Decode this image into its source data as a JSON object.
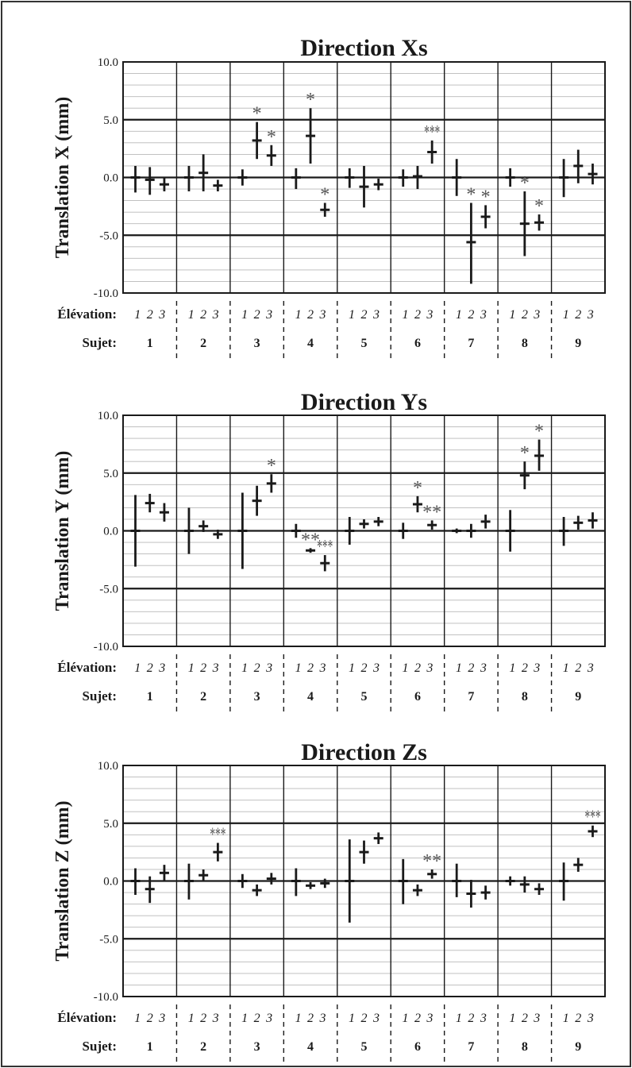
{
  "chart_data": [
    {
      "type": "errorbar",
      "title": "Direction Xs",
      "ylabel": "Translation X (mm)",
      "ylim": [
        -10,
        10
      ],
      "yticks": [
        "10.0",
        "5.0",
        "0.0",
        "-5.0",
        "-10.0"
      ],
      "row_labels": {
        "elevation": "Élévation:",
        "subject": "Sujet:"
      },
      "groups": [
        "1",
        "2",
        "3",
        "4",
        "5",
        "6",
        "7",
        "8",
        "9"
      ],
      "elevation_labels": [
        "1",
        "2",
        "3"
      ],
      "points": [
        {
          "s": 1,
          "e": 1,
          "y": 0.0,
          "lo": -1.3,
          "hi": 1.0,
          "stars": ""
        },
        {
          "s": 1,
          "e": 2,
          "y": -0.2,
          "lo": -1.5,
          "hi": 0.9,
          "stars": ""
        },
        {
          "s": 1,
          "e": 3,
          "y": -0.6,
          "lo": -1.2,
          "hi": 0.0,
          "stars": ""
        },
        {
          "s": 2,
          "e": 1,
          "y": 0.0,
          "lo": -1.2,
          "hi": 1.0,
          "stars": ""
        },
        {
          "s": 2,
          "e": 2,
          "y": 0.4,
          "lo": -1.2,
          "hi": 2.0,
          "stars": ""
        },
        {
          "s": 2,
          "e": 3,
          "y": -0.7,
          "lo": -1.2,
          "hi": -0.2,
          "stars": ""
        },
        {
          "s": 3,
          "e": 1,
          "y": 0.0,
          "lo": -0.7,
          "hi": 0.7,
          "stars": ""
        },
        {
          "s": 3,
          "e": 2,
          "y": 3.2,
          "lo": 1.6,
          "hi": 4.8,
          "stars": "*"
        },
        {
          "s": 3,
          "e": 3,
          "y": 1.9,
          "lo": 1.0,
          "hi": 2.8,
          "stars": "*"
        },
        {
          "s": 4,
          "e": 1,
          "y": 0.0,
          "lo": -1.0,
          "hi": 0.8,
          "stars": ""
        },
        {
          "s": 4,
          "e": 2,
          "y": 3.6,
          "lo": 1.2,
          "hi": 6.0,
          "stars": "*"
        },
        {
          "s": 4,
          "e": 3,
          "y": -2.8,
          "lo": -3.4,
          "hi": -2.2,
          "stars": "*"
        },
        {
          "s": 5,
          "e": 1,
          "y": 0.0,
          "lo": -0.9,
          "hi": 0.8,
          "stars": ""
        },
        {
          "s": 5,
          "e": 2,
          "y": -0.8,
          "lo": -2.6,
          "hi": 1.0,
          "stars": ""
        },
        {
          "s": 5,
          "e": 3,
          "y": -0.6,
          "lo": -1.1,
          "hi": -0.1,
          "stars": ""
        },
        {
          "s": 6,
          "e": 1,
          "y": 0.0,
          "lo": -0.8,
          "hi": 0.7,
          "stars": ""
        },
        {
          "s": 6,
          "e": 2,
          "y": 0.1,
          "lo": -1.0,
          "hi": 1.0,
          "stars": ""
        },
        {
          "s": 6,
          "e": 3,
          "y": 2.2,
          "lo": 1.2,
          "hi": 3.2,
          "stars": "***"
        },
        {
          "s": 7,
          "e": 1,
          "y": 0.0,
          "lo": -1.6,
          "hi": 1.6,
          "stars": ""
        },
        {
          "s": 7,
          "e": 2,
          "y": -5.6,
          "lo": -9.2,
          "hi": -2.2,
          "stars": "*"
        },
        {
          "s": 7,
          "e": 3,
          "y": -3.4,
          "lo": -4.4,
          "hi": -2.4,
          "stars": "*"
        },
        {
          "s": 8,
          "e": 1,
          "y": 0.0,
          "lo": -0.8,
          "hi": 0.8,
          "stars": ""
        },
        {
          "s": 8,
          "e": 2,
          "y": -4.0,
          "lo": -6.8,
          "hi": -1.2,
          "stars": "*"
        },
        {
          "s": 8,
          "e": 3,
          "y": -3.9,
          "lo": -4.6,
          "hi": -3.2,
          "stars": "*"
        },
        {
          "s": 9,
          "e": 1,
          "y": 0.0,
          "lo": -1.7,
          "hi": 1.6,
          "stars": ""
        },
        {
          "s": 9,
          "e": 2,
          "y": 1.0,
          "lo": -0.5,
          "hi": 2.4,
          "stars": ""
        },
        {
          "s": 9,
          "e": 3,
          "y": 0.3,
          "lo": -0.6,
          "hi": 1.2,
          "stars": ""
        }
      ]
    },
    {
      "type": "errorbar",
      "title": "Direction Ys",
      "ylabel": "Translation Y (mm)",
      "ylim": [
        -10,
        10
      ],
      "yticks": [
        "10.0",
        "5.0",
        "0.0",
        "-5.0",
        "-10.0"
      ],
      "row_labels": {
        "elevation": "Élévation:",
        "subject": "Sujet:"
      },
      "groups": [
        "1",
        "2",
        "3",
        "4",
        "5",
        "6",
        "7",
        "8",
        "9"
      ],
      "elevation_labels": [
        "1",
        "2",
        "3"
      ],
      "points": [
        {
          "s": 1,
          "e": 1,
          "y": 0.0,
          "lo": -3.1,
          "hi": 3.1,
          "stars": ""
        },
        {
          "s": 1,
          "e": 2,
          "y": 2.4,
          "lo": 1.6,
          "hi": 3.2,
          "stars": ""
        },
        {
          "s": 1,
          "e": 3,
          "y": 1.6,
          "lo": 0.8,
          "hi": 2.4,
          "stars": ""
        },
        {
          "s": 2,
          "e": 1,
          "y": 0.0,
          "lo": -2.0,
          "hi": 2.0,
          "stars": ""
        },
        {
          "s": 2,
          "e": 2,
          "y": 0.4,
          "lo": -0.1,
          "hi": 0.9,
          "stars": ""
        },
        {
          "s": 2,
          "e": 3,
          "y": -0.3,
          "lo": -0.7,
          "hi": 0.1,
          "stars": ""
        },
        {
          "s": 3,
          "e": 1,
          "y": 0.0,
          "lo": -3.3,
          "hi": 3.3,
          "stars": ""
        },
        {
          "s": 3,
          "e": 2,
          "y": 2.6,
          "lo": 1.3,
          "hi": 3.9,
          "stars": ""
        },
        {
          "s": 3,
          "e": 3,
          "y": 4.1,
          "lo": 3.3,
          "hi": 4.9,
          "stars": "*"
        },
        {
          "s": 4,
          "e": 1,
          "y": 0.0,
          "lo": -0.6,
          "hi": 0.6,
          "stars": ""
        },
        {
          "s": 4,
          "e": 2,
          "y": -1.7,
          "lo": -1.9,
          "hi": -1.5,
          "stars": "**"
        },
        {
          "s": 4,
          "e": 3,
          "y": -2.8,
          "lo": -3.5,
          "hi": -2.1,
          "stars": "***"
        },
        {
          "s": 5,
          "e": 1,
          "y": 0.0,
          "lo": -1.2,
          "hi": 1.2,
          "stars": ""
        },
        {
          "s": 5,
          "e": 2,
          "y": 0.6,
          "lo": 0.2,
          "hi": 1.0,
          "stars": ""
        },
        {
          "s": 5,
          "e": 3,
          "y": 0.8,
          "lo": 0.4,
          "hi": 1.2,
          "stars": ""
        },
        {
          "s": 6,
          "e": 1,
          "y": 0.0,
          "lo": -0.7,
          "hi": 0.7,
          "stars": ""
        },
        {
          "s": 6,
          "e": 2,
          "y": 2.3,
          "lo": 1.6,
          "hi": 3.0,
          "stars": "*"
        },
        {
          "s": 6,
          "e": 3,
          "y": 0.5,
          "lo": 0.1,
          "hi": 0.9,
          "stars": "**"
        },
        {
          "s": 7,
          "e": 1,
          "y": 0.0,
          "lo": -0.2,
          "hi": 0.2,
          "stars": ""
        },
        {
          "s": 7,
          "e": 2,
          "y": 0.0,
          "lo": -0.6,
          "hi": 0.6,
          "stars": ""
        },
        {
          "s": 7,
          "e": 3,
          "y": 0.8,
          "lo": 0.2,
          "hi": 1.4,
          "stars": ""
        },
        {
          "s": 8,
          "e": 1,
          "y": 0.0,
          "lo": -1.8,
          "hi": 1.8,
          "stars": ""
        },
        {
          "s": 8,
          "e": 2,
          "y": 4.8,
          "lo": 3.6,
          "hi": 6.0,
          "stars": "*"
        },
        {
          "s": 8,
          "e": 3,
          "y": 6.5,
          "lo": 5.2,
          "hi": 7.9,
          "stars": "*"
        },
        {
          "s": 9,
          "e": 1,
          "y": 0.0,
          "lo": -1.3,
          "hi": 1.2,
          "stars": ""
        },
        {
          "s": 9,
          "e": 2,
          "y": 0.7,
          "lo": 0.1,
          "hi": 1.3,
          "stars": ""
        },
        {
          "s": 9,
          "e": 3,
          "y": 0.9,
          "lo": 0.2,
          "hi": 1.6,
          "stars": ""
        }
      ]
    },
    {
      "type": "errorbar",
      "title": "Direction Zs",
      "ylabel": "Translation Z (mm)",
      "ylim": [
        -10,
        10
      ],
      "yticks": [
        "10.0",
        "5.0",
        "0.0",
        "-5.0",
        "-10.0"
      ],
      "row_labels": {
        "elevation": "Élévation:",
        "subject": "Sujet:"
      },
      "groups": [
        "1",
        "2",
        "3",
        "4",
        "5",
        "6",
        "7",
        "8",
        "9"
      ],
      "elevation_labels": [
        "1",
        "2",
        "3"
      ],
      "points": [
        {
          "s": 1,
          "e": 1,
          "y": 0.0,
          "lo": -1.2,
          "hi": 1.1,
          "stars": ""
        },
        {
          "s": 1,
          "e": 2,
          "y": -0.7,
          "lo": -1.9,
          "hi": 0.4,
          "stars": ""
        },
        {
          "s": 1,
          "e": 3,
          "y": 0.7,
          "lo": 0.0,
          "hi": 1.4,
          "stars": ""
        },
        {
          "s": 2,
          "e": 1,
          "y": 0.0,
          "lo": -1.6,
          "hi": 1.5,
          "stars": ""
        },
        {
          "s": 2,
          "e": 2,
          "y": 0.5,
          "lo": 0.0,
          "hi": 1.0,
          "stars": ""
        },
        {
          "s": 2,
          "e": 3,
          "y": 2.5,
          "lo": 1.7,
          "hi": 3.3,
          "stars": "***"
        },
        {
          "s": 3,
          "e": 1,
          "y": 0.0,
          "lo": -0.6,
          "hi": 0.6,
          "stars": ""
        },
        {
          "s": 3,
          "e": 2,
          "y": -0.8,
          "lo": -1.3,
          "hi": -0.3,
          "stars": ""
        },
        {
          "s": 3,
          "e": 3,
          "y": 0.2,
          "lo": -0.3,
          "hi": 0.7,
          "stars": ""
        },
        {
          "s": 4,
          "e": 1,
          "y": 0.0,
          "lo": -1.3,
          "hi": 1.1,
          "stars": ""
        },
        {
          "s": 4,
          "e": 2,
          "y": -0.4,
          "lo": -0.7,
          "hi": -0.1,
          "stars": ""
        },
        {
          "s": 4,
          "e": 3,
          "y": -0.2,
          "lo": -0.6,
          "hi": 0.2,
          "stars": ""
        },
        {
          "s": 5,
          "e": 1,
          "y": 0.0,
          "lo": -3.6,
          "hi": 3.6,
          "stars": ""
        },
        {
          "s": 5,
          "e": 2,
          "y": 2.5,
          "lo": 1.5,
          "hi": 3.5,
          "stars": ""
        },
        {
          "s": 5,
          "e": 3,
          "y": 3.7,
          "lo": 3.2,
          "hi": 4.2,
          "stars": ""
        },
        {
          "s": 6,
          "e": 1,
          "y": 0.0,
          "lo": -2.0,
          "hi": 1.9,
          "stars": ""
        },
        {
          "s": 6,
          "e": 2,
          "y": -0.8,
          "lo": -1.3,
          "hi": -0.3,
          "stars": ""
        },
        {
          "s": 6,
          "e": 3,
          "y": 0.6,
          "lo": 0.2,
          "hi": 1.0,
          "stars": "**"
        },
        {
          "s": 7,
          "e": 1,
          "y": 0.0,
          "lo": -1.4,
          "hi": 1.5,
          "stars": ""
        },
        {
          "s": 7,
          "e": 2,
          "y": -1.1,
          "lo": -2.3,
          "hi": 0.1,
          "stars": ""
        },
        {
          "s": 7,
          "e": 3,
          "y": -1.0,
          "lo": -1.6,
          "hi": -0.4,
          "stars": ""
        },
        {
          "s": 8,
          "e": 1,
          "y": 0.0,
          "lo": -0.4,
          "hi": 0.4,
          "stars": ""
        },
        {
          "s": 8,
          "e": 2,
          "y": -0.3,
          "lo": -1.0,
          "hi": 0.4,
          "stars": ""
        },
        {
          "s": 8,
          "e": 3,
          "y": -0.7,
          "lo": -1.2,
          "hi": -0.2,
          "stars": ""
        },
        {
          "s": 9,
          "e": 1,
          "y": 0.0,
          "lo": -1.7,
          "hi": 1.6,
          "stars": ""
        },
        {
          "s": 9,
          "e": 2,
          "y": 1.4,
          "lo": 0.8,
          "hi": 2.0,
          "stars": ""
        },
        {
          "s": 9,
          "e": 3,
          "y": 4.3,
          "lo": 3.8,
          "hi": 4.8,
          "stars": "***"
        }
      ]
    }
  ]
}
